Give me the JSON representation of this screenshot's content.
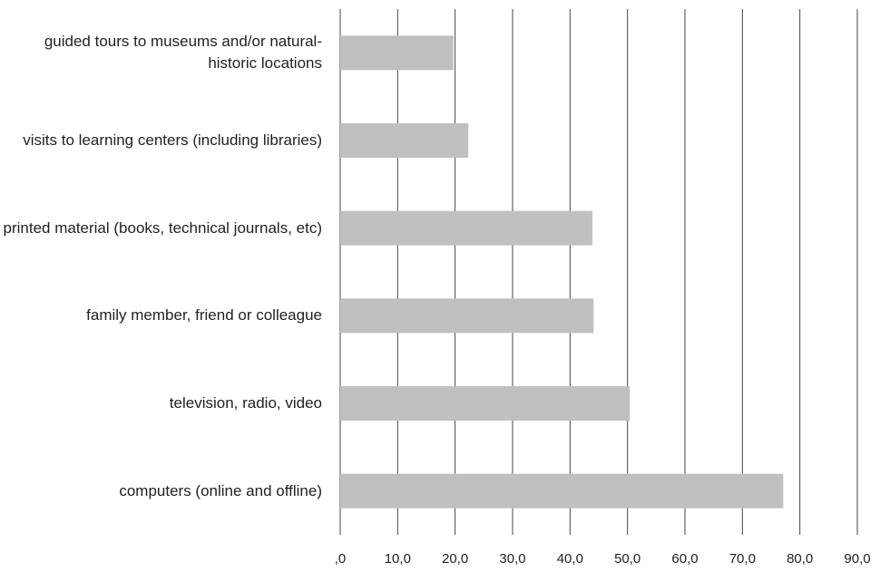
{
  "chart_data": {
    "type": "barh",
    "categories": [
      "guided tours to museums and/or natural-historic locations",
      "visits to learning centers (including libraries)",
      "printed material (books, technical journals, etc)",
      "family member, friend or colleague",
      "television, radio, video",
      "computers (online and offline)"
    ],
    "values": [
      19.7,
      22.3,
      43.9,
      44.1,
      50.4,
      77.1
    ],
    "color": "#c0c0c0",
    "xlim": [
      0,
      90
    ],
    "xticks": [
      {
        "value": 0,
        "label": ",0"
      },
      {
        "value": 10,
        "label": "10,0"
      },
      {
        "value": 20,
        "label": "20,0"
      },
      {
        "value": 30,
        "label": "30,0"
      },
      {
        "value": 40,
        "label": "40,0"
      },
      {
        "value": 50,
        "label": "50,0"
      },
      {
        "value": 60,
        "label": "60,0"
      },
      {
        "value": 70,
        "label": "70,0"
      },
      {
        "value": 80,
        "label": "80,0"
      },
      {
        "value": 90,
        "label": "90,0"
      }
    ],
    "grid": true
  }
}
